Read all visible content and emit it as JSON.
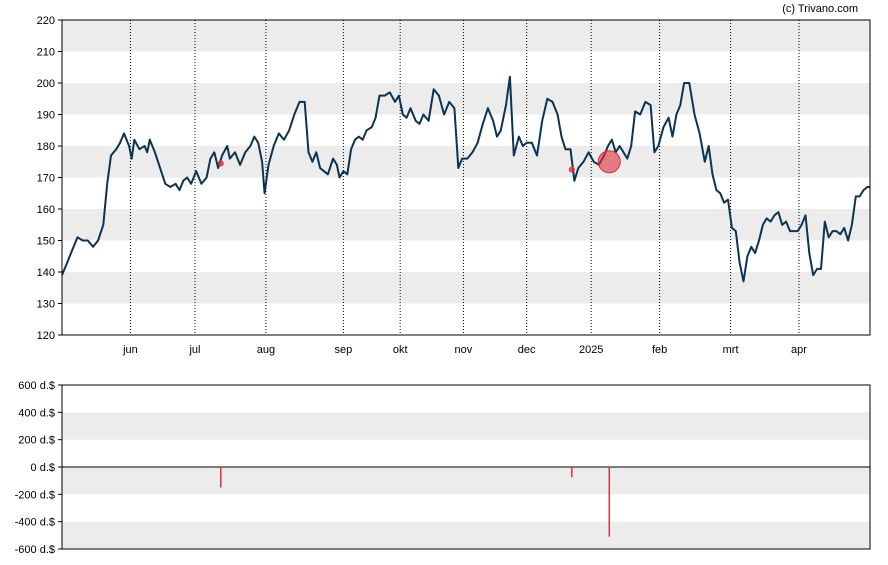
{
  "watermark": "(c) Trivano.com",
  "colors": {
    "price_line": "#0b3352",
    "band": "#ececec",
    "marker": "#e0303a",
    "axis": "#000000"
  },
  "chart_data": [
    {
      "type": "line",
      "title": "",
      "xlabel": "",
      "ylabel": "",
      "ylim": [
        120,
        220
      ],
      "yticks": [
        120,
        130,
        140,
        150,
        160,
        170,
        180,
        190,
        200,
        210,
        220
      ],
      "grid": "alternating horizontal bands; dotted vertical month lines",
      "month_labels": [
        "jun",
        "jul",
        "aug",
        "sep",
        "okt",
        "nov",
        "dec",
        "2025",
        "feb",
        "mrt",
        "apr"
      ],
      "month_positions": [
        26.5,
        51.5,
        79,
        109,
        131,
        155.5,
        180,
        205,
        231.5,
        259,
        285.5
      ],
      "x_range": [
        0,
        313
      ],
      "series": [
        {
          "values": [
            [
              0,
              139
            ],
            [
              2,
              143
            ],
            [
              4,
              147
            ],
            [
              6,
              151
            ],
            [
              8,
              150
            ],
            [
              10,
              150
            ],
            [
              12,
              148
            ],
            [
              14,
              150
            ],
            [
              16,
              155
            ],
            [
              17.5,
              168
            ],
            [
              19,
              177
            ],
            [
              21,
              179
            ],
            [
              22.5,
              181
            ],
            [
              24,
              184
            ],
            [
              26,
              180
            ],
            [
              27,
              176
            ],
            [
              28,
              182
            ],
            [
              30,
              179
            ],
            [
              32,
              180
            ],
            [
              33,
              178
            ],
            [
              34,
              182
            ],
            [
              36,
              178
            ],
            [
              38,
              173
            ],
            [
              40,
              168
            ],
            [
              42,
              167
            ],
            [
              44,
              168
            ],
            [
              45.5,
              166
            ],
            [
              47,
              169
            ],
            [
              48.5,
              170
            ],
            [
              50,
              168
            ],
            [
              52,
              172
            ],
            [
              53,
              170
            ],
            [
              54,
              168
            ],
            [
              56,
              170
            ],
            [
              57.5,
              176
            ],
            [
              59,
              178
            ],
            [
              60.5,
              173
            ],
            [
              62,
              177
            ],
            [
              64,
              180
            ],
            [
              65,
              176
            ],
            [
              67,
              178
            ],
            [
              69,
              174
            ],
            [
              71,
              178
            ],
            [
              73,
              180
            ],
            [
              74.5,
              183
            ],
            [
              76,
              181
            ],
            [
              77.5,
              175
            ],
            [
              78.5,
              165
            ],
            [
              80,
              174
            ],
            [
              82,
              180
            ],
            [
              84,
              184
            ],
            [
              86,
              182
            ],
            [
              88,
              185
            ],
            [
              90,
              190
            ],
            [
              92,
              194
            ],
            [
              94,
              194
            ],
            [
              95.5,
              178
            ],
            [
              97,
              175
            ],
            [
              98.5,
              178
            ],
            [
              100,
              173
            ],
            [
              101.5,
              172
            ],
            [
              103,
              171
            ],
            [
              105,
              176
            ],
            [
              106.5,
              174
            ],
            [
              107.5,
              170
            ],
            [
              109,
              172
            ],
            [
              110.5,
              171
            ],
            [
              112,
              179
            ],
            [
              113.5,
              182
            ],
            [
              115,
              183
            ],
            [
              116.5,
              182
            ],
            [
              118,
              185
            ],
            [
              120,
              186
            ],
            [
              121.5,
              189
            ],
            [
              123,
              196
            ],
            [
              125,
              196
            ],
            [
              127,
              197
            ],
            [
              129,
              194
            ],
            [
              130.5,
              196
            ],
            [
              132,
              190
            ],
            [
              133.5,
              189
            ],
            [
              135,
              192
            ],
            [
              137,
              188
            ],
            [
              138.5,
              187
            ],
            [
              140,
              190
            ],
            [
              142,
              188
            ],
            [
              144,
              198
            ],
            [
              146,
              196
            ],
            [
              148,
              190
            ],
            [
              150,
              194
            ],
            [
              152,
              192
            ],
            [
              153.5,
              173
            ],
            [
              155,
              176
            ],
            [
              157,
              176
            ],
            [
              159,
              178
            ],
            [
              161,
              181
            ],
            [
              163,
              187
            ],
            [
              165,
              192
            ],
            [
              167,
              188
            ],
            [
              168.5,
              183
            ],
            [
              170,
              185
            ],
            [
              172,
              193
            ],
            [
              173.5,
              202
            ],
            [
              175,
              177
            ],
            [
              177,
              183
            ],
            [
              178.5,
              180
            ],
            [
              180,
              181
            ],
            [
              182,
              181
            ],
            [
              184,
              177
            ],
            [
              186,
              188
            ],
            [
              188,
              195
            ],
            [
              190,
              194
            ],
            [
              192,
              190
            ],
            [
              193.5,
              183
            ],
            [
              195,
              179
            ],
            [
              197,
              179
            ],
            [
              198.5,
              169
            ],
            [
              200,
              173
            ],
            [
              202,
              175
            ],
            [
              204,
              178
            ],
            [
              206,
              175
            ],
            [
              208,
              174
            ],
            [
              210,
              177
            ],
            [
              211.5,
              180
            ],
            [
              213,
              182
            ],
            [
              214.5,
              178
            ],
            [
              216,
              180
            ],
            [
              217.5,
              178
            ],
            [
              219,
              176
            ],
            [
              220.5,
              180
            ],
            [
              222,
              191
            ],
            [
              224,
              190
            ],
            [
              226,
              194
            ],
            [
              228,
              193
            ],
            [
              229.5,
              178
            ],
            [
              231,
              180
            ],
            [
              233,
              186
            ],
            [
              235,
              189
            ],
            [
              236.5,
              183
            ],
            [
              238,
              190
            ],
            [
              239.5,
              193
            ],
            [
              241,
              200
            ],
            [
              243,
              200
            ],
            [
              245,
              190
            ],
            [
              247,
              184
            ],
            [
              249,
              175
            ],
            [
              250.5,
              180
            ],
            [
              252,
              171
            ],
            [
              253.5,
              166
            ],
            [
              255,
              165
            ],
            [
              256.5,
              162
            ],
            [
              258,
              163
            ],
            [
              259.5,
              154
            ],
            [
              261,
              153
            ],
            [
              262.5,
              143
            ],
            [
              264,
              137
            ],
            [
              265.5,
              145
            ],
            [
              267,
              148
            ],
            [
              268.5,
              146
            ],
            [
              270,
              150
            ],
            [
              271.5,
              155
            ],
            [
              273,
              157
            ],
            [
              274.5,
              156
            ],
            [
              276,
              158
            ],
            [
              277.5,
              159
            ],
            [
              279,
              155
            ],
            [
              280.5,
              156
            ],
            [
              282,
              153
            ],
            [
              283.5,
              153
            ],
            [
              285,
              153
            ],
            [
              286.5,
              155
            ],
            [
              288,
              158
            ],
            [
              289.5,
              146
            ],
            [
              291,
              139
            ],
            [
              292.5,
              141
            ],
            [
              294,
              141
            ],
            [
              295.5,
              156
            ],
            [
              297,
              151
            ],
            [
              298.5,
              153
            ],
            [
              300,
              153
            ],
            [
              301.5,
              152
            ],
            [
              303,
              154
            ],
            [
              304.5,
              150
            ],
            [
              306,
              155
            ],
            [
              307.5,
              164
            ],
            [
              309,
              164
            ],
            [
              310.5,
              166
            ],
            [
              312,
              167
            ],
            [
              313,
              167
            ]
          ]
        }
      ],
      "markers": [
        {
          "x": 61.5,
          "y": 174.5,
          "size": "small"
        },
        {
          "x": 197.5,
          "y": 172.5,
          "size": "small"
        },
        {
          "x": 212,
          "y": 175,
          "size": "large"
        }
      ]
    },
    {
      "type": "bar",
      "title": "",
      "xlabel": "",
      "ylabel": "",
      "ylim": [
        -600,
        600
      ],
      "yticks": [
        600,
        400,
        200,
        0,
        -200,
        -400,
        -600
      ],
      "tick_suffix": " d.$",
      "grid": "alternating horizontal bands",
      "x_range": [
        0,
        313
      ],
      "bars": [
        {
          "x": 61.5,
          "value": -150
        },
        {
          "x": 197.5,
          "value": -75
        },
        {
          "x": 212,
          "value": -510
        }
      ]
    }
  ]
}
